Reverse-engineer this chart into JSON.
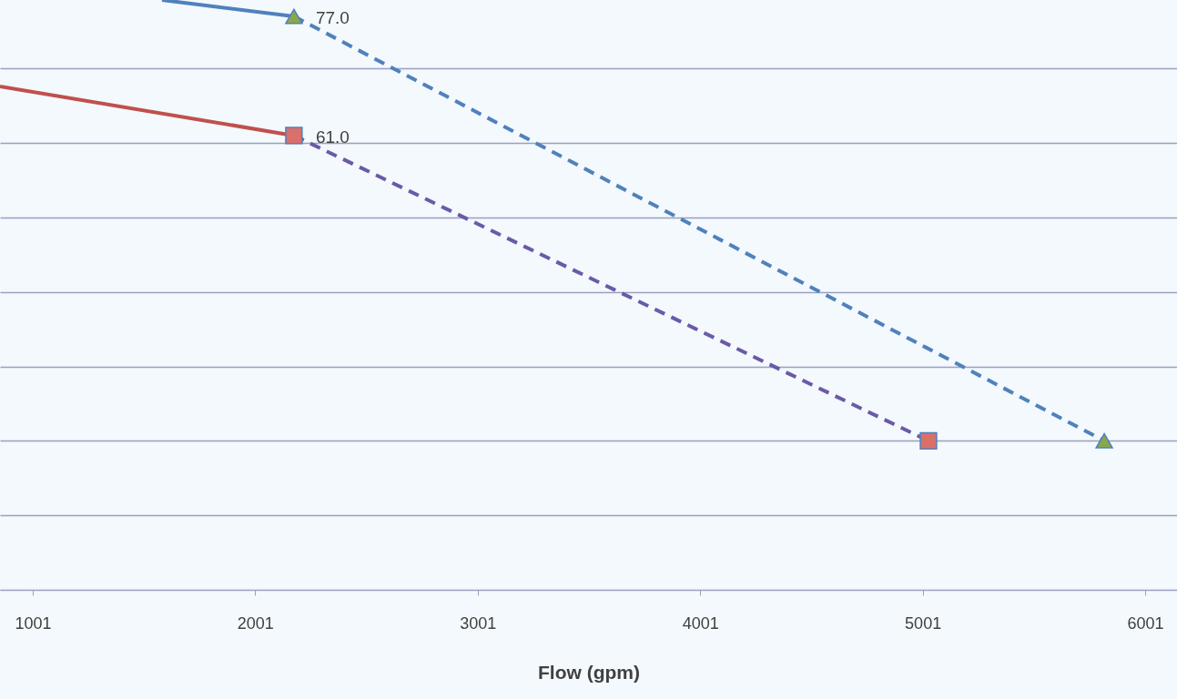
{
  "chart_data": {
    "type": "line",
    "xlabel": "Flow (gpm)",
    "xlim": [
      854,
      6144
    ],
    "xticks": [
      1001,
      2001,
      3001,
      4001,
      5001,
      6001
    ],
    "ylim": [
      0,
      79.2
    ],
    "yticks": [
      0,
      10,
      20,
      30,
      40,
      50,
      60,
      70
    ],
    "tick_labels": "x",
    "grid": "y",
    "series": [
      {
        "x": [
          854,
          2175
        ],
        "values": [
          67.6,
          61.0
        ],
        "color": "#c0504d",
        "line_style": "solid",
        "marker": "none"
      },
      {
        "x": [
          2175,
          5027
        ],
        "values": [
          61.0,
          20
        ],
        "color": "#6a5aa8",
        "line_style": "dashed",
        "marker": "none"
      },
      {
        "x": [
          1582,
          2175
        ],
        "values": [
          79.2,
          77.0
        ],
        "color": "#4f81bd",
        "line_style": "solid",
        "marker": "none"
      },
      {
        "x": [
          2175,
          5817
        ],
        "values": [
          77.0,
          20
        ],
        "color": "#4f81bd",
        "line_style": "dashed",
        "marker": "none"
      },
      {
        "type": "scatter",
        "x": [
          2175,
          5027
        ],
        "values": [
          61.0,
          20
        ],
        "color": "#d9706a",
        "marker": "square",
        "value_labels": [
          "61.0",
          null
        ]
      },
      {
        "type": "scatter",
        "x": [
          2175,
          5817
        ],
        "values": [
          77.0,
          20
        ],
        "color": "#8aa84a",
        "marker": "triangle",
        "value_labels": [
          "77.0",
          null
        ]
      }
    ]
  }
}
